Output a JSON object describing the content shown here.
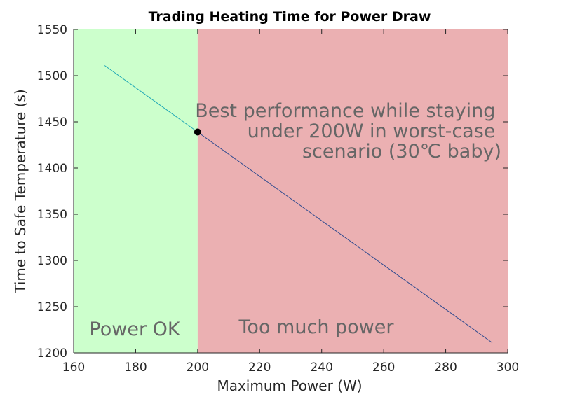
{
  "chart_data": {
    "type": "line",
    "title": "Trading Heating Time for Power Draw",
    "xlabel": "Maximum Power (W)",
    "ylabel": "Time to Safe Temperature (s)",
    "xlim": [
      160,
      300
    ],
    "ylim": [
      1200,
      1550
    ],
    "xticks": [
      160,
      180,
      200,
      220,
      240,
      260,
      280,
      300
    ],
    "yticks": [
      1200,
      1250,
      1300,
      1350,
      1400,
      1450,
      1500,
      1550
    ],
    "grid": false,
    "regions": [
      {
        "label": "Power OK",
        "x_from": 160,
        "x_to": 200,
        "color": "#ccffcc"
      },
      {
        "label": "Too much power",
        "x_from": 200,
        "x_to": 300,
        "color": "#ebb0b2"
      }
    ],
    "series": [
      {
        "x": [
          170,
          200,
          295
        ],
        "y": [
          1511,
          1439,
          1211
        ],
        "colors": [
          "#20a8b5",
          "#2e4a8f"
        ]
      }
    ],
    "highlight_point": {
      "x": 200,
      "y": 1439
    },
    "annotation": {
      "lines": [
        "Best performance while staying",
        "under 200W in worst-case",
        "scenario (30℃ baby)"
      ]
    }
  }
}
